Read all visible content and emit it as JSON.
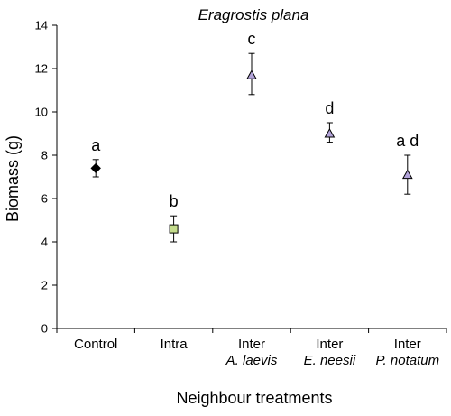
{
  "chart_data": {
    "type": "scatter",
    "title": "Eragrostis plana",
    "xlabel": "Neighbour treatments",
    "ylabel": "Biomass (g)",
    "ylim": [
      0,
      14
    ],
    "yticks": [
      0,
      2,
      4,
      6,
      8,
      10,
      12,
      14
    ],
    "grid": false,
    "categories": [
      {
        "line1": "Control",
        "line2": ""
      },
      {
        "line1": "Intra",
        "line2": ""
      },
      {
        "line1": "Inter",
        "line2": "A. laevis"
      },
      {
        "line1": "Inter",
        "line2": "E. neesii"
      },
      {
        "line1": "Inter",
        "line2": "P. notatum"
      }
    ],
    "points": [
      {
        "value": 7.4,
        "err_low": 7.0,
        "err_high": 7.8,
        "letter": "a",
        "marker": "diamond",
        "color": "#000000"
      },
      {
        "value": 4.6,
        "err_low": 4.0,
        "err_high": 5.2,
        "letter": "b",
        "marker": "square",
        "color": "#c4dc8c"
      },
      {
        "value": 11.7,
        "err_low": 10.8,
        "err_high": 12.7,
        "letter": "c",
        "marker": "triangle",
        "color": "#b2a3d9"
      },
      {
        "value": 9.0,
        "err_low": 8.6,
        "err_high": 9.5,
        "letter": "d",
        "marker": "triangle",
        "color": "#b2a3d9"
      },
      {
        "value": 7.1,
        "err_low": 6.2,
        "err_high": 8.0,
        "letter": "a d",
        "marker": "triangle",
        "color": "#b2a3d9"
      }
    ]
  }
}
